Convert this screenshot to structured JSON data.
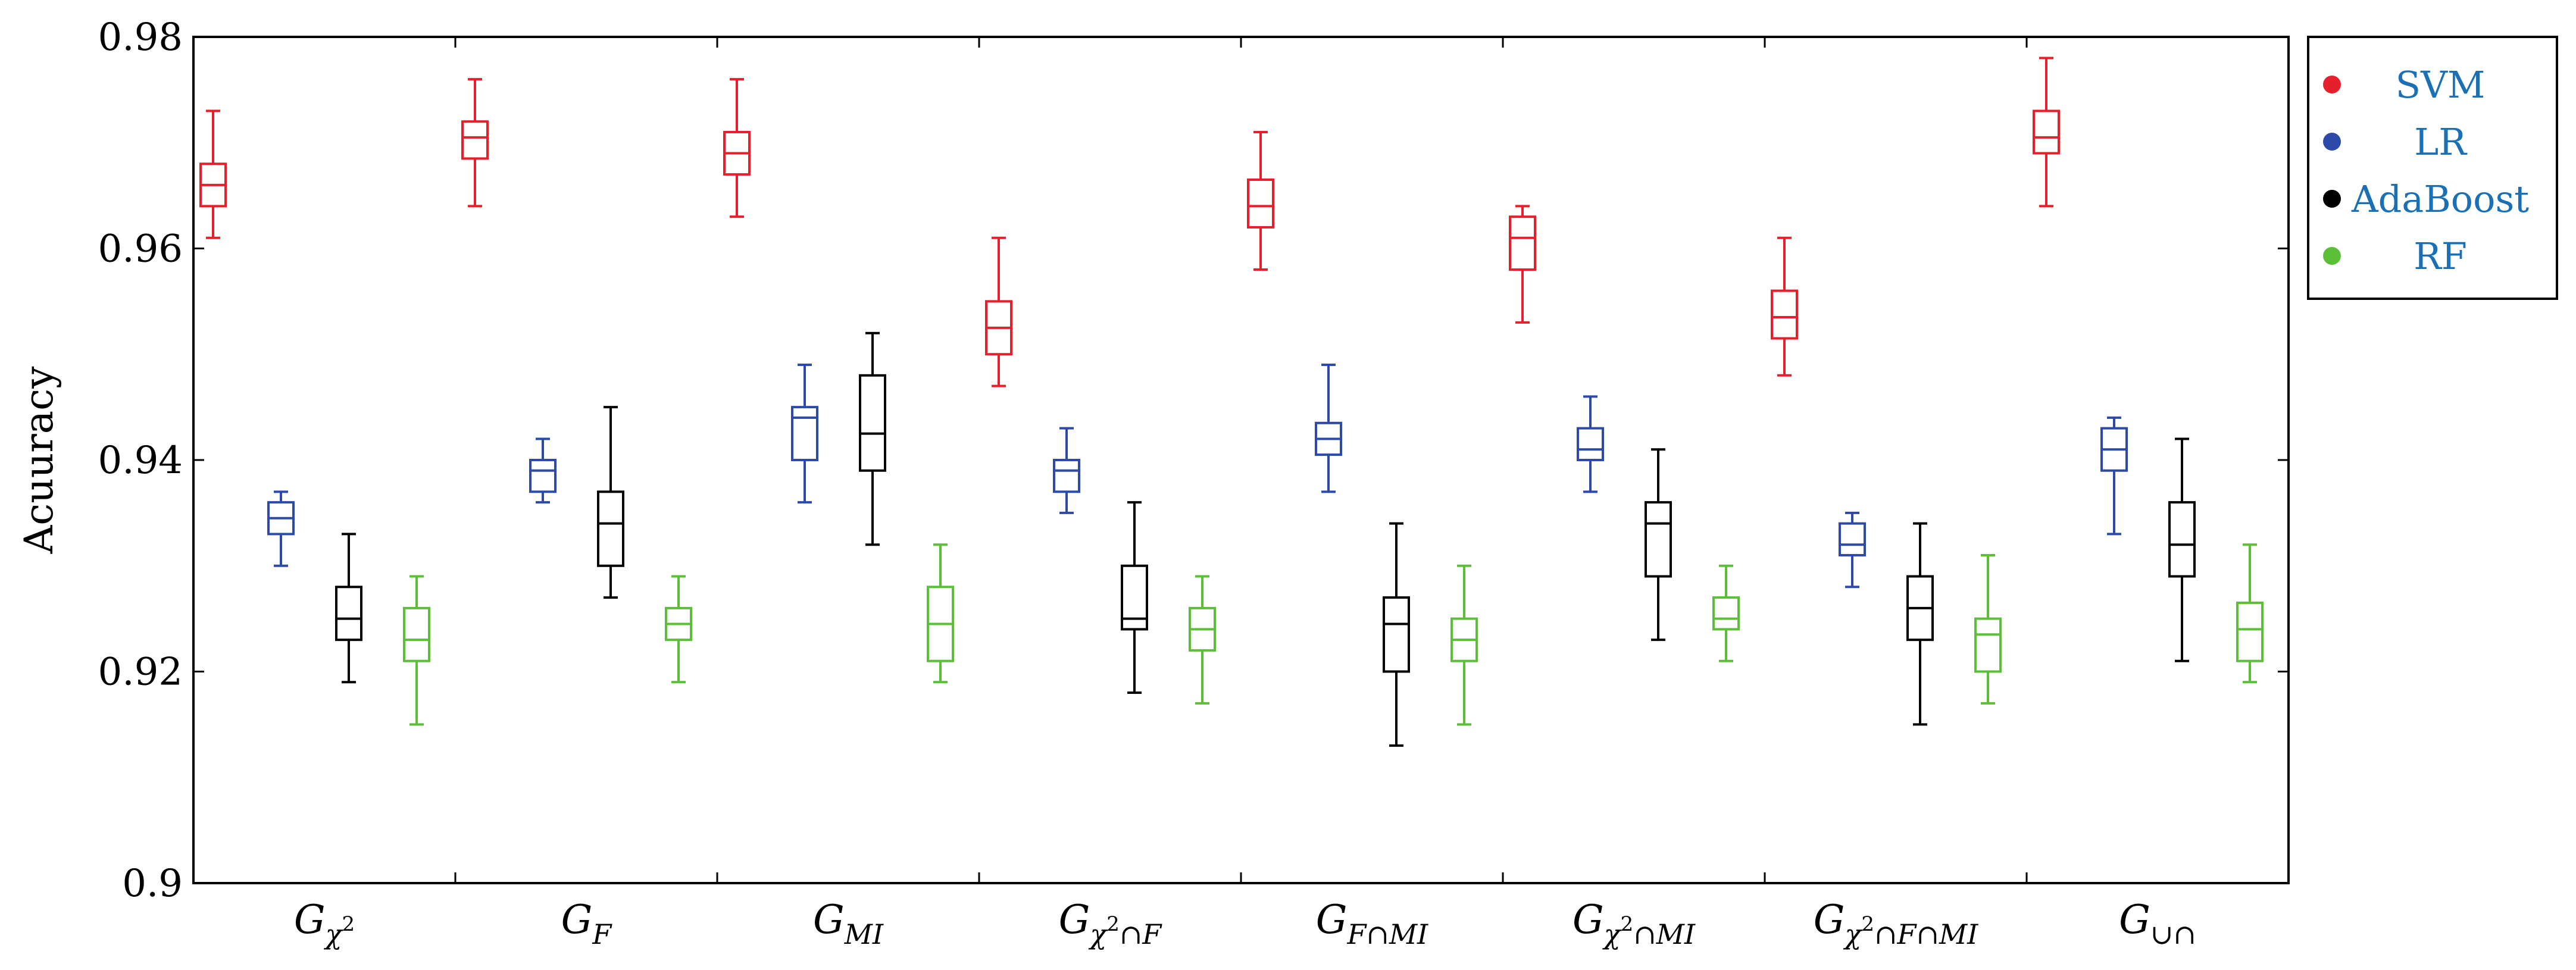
{
  "chart_data": {
    "type": "boxplot",
    "ylabel": "Acuuracy",
    "xlabel": "",
    "ylim": [
      0.9,
      0.98
    ],
    "yticks": [
      "0.9",
      "0.92",
      "0.94",
      "0.96",
      "0.98"
    ],
    "grid": false,
    "legend_position": "outside-top-right",
    "categories": [
      {
        "base": "G",
        "sub": "χ",
        "sup": "2",
        "rest": ""
      },
      {
        "base": "G",
        "sub": "F",
        "sup": "",
        "rest": ""
      },
      {
        "base": "G",
        "sub": "MI",
        "sup": "",
        "rest": ""
      },
      {
        "base": "G",
        "sub": "χ",
        "sup": "2",
        "rest": "∩F"
      },
      {
        "base": "G",
        "sub": "F∩MI",
        "sup": "",
        "rest": ""
      },
      {
        "base": "G",
        "sub": "χ",
        "sup": "2",
        "rest": "∩MI"
      },
      {
        "base": "G",
        "sub": "χ",
        "sup": "2",
        "rest": "∩F∩MI"
      },
      {
        "base": "G",
        "sub": "∪∩",
        "sup": "",
        "rest": ""
      }
    ],
    "series": [
      {
        "name": "SVM",
        "color": "#e5202b",
        "boxes": [
          {
            "min": 0.961,
            "q1": 0.964,
            "median": 0.966,
            "q3": 0.968,
            "max": 0.973
          },
          {
            "min": 0.964,
            "q1": 0.9685,
            "median": 0.9705,
            "q3": 0.972,
            "max": 0.976
          },
          {
            "min": 0.963,
            "q1": 0.967,
            "median": 0.969,
            "q3": 0.971,
            "max": 0.976
          },
          {
            "min": 0.947,
            "q1": 0.95,
            "median": 0.9525,
            "q3": 0.955,
            "max": 0.961
          },
          {
            "min": 0.958,
            "q1": 0.962,
            "median": 0.964,
            "q3": 0.9665,
            "max": 0.971
          },
          {
            "min": 0.953,
            "q1": 0.958,
            "median": 0.961,
            "q3": 0.963,
            "max": 0.964
          },
          {
            "min": 0.948,
            "q1": 0.9515,
            "median": 0.9535,
            "q3": 0.956,
            "max": 0.961
          },
          {
            "min": 0.964,
            "q1": 0.969,
            "median": 0.9705,
            "q3": 0.973,
            "max": 0.978
          }
        ]
      },
      {
        "name": "LR",
        "color": "#2e4aa8",
        "boxes": [
          {
            "min": 0.93,
            "q1": 0.933,
            "median": 0.9345,
            "q3": 0.936,
            "max": 0.937
          },
          {
            "min": 0.936,
            "q1": 0.937,
            "median": 0.939,
            "q3": 0.94,
            "max": 0.942
          },
          {
            "min": 0.936,
            "q1": 0.94,
            "median": 0.944,
            "q3": 0.945,
            "max": 0.949
          },
          {
            "min": 0.935,
            "q1": 0.937,
            "median": 0.939,
            "q3": 0.94,
            "max": 0.943
          },
          {
            "min": 0.937,
            "q1": 0.9405,
            "median": 0.942,
            "q3": 0.9435,
            "max": 0.949
          },
          {
            "min": 0.937,
            "q1": 0.94,
            "median": 0.941,
            "q3": 0.943,
            "max": 0.946
          },
          {
            "min": 0.928,
            "q1": 0.931,
            "median": 0.932,
            "q3": 0.934,
            "max": 0.935
          },
          {
            "min": 0.933,
            "q1": 0.939,
            "median": 0.941,
            "q3": 0.943,
            "max": 0.944
          }
        ]
      },
      {
        "name": "AdaBoost",
        "color": "#000000",
        "boxes": [
          {
            "min": 0.919,
            "q1": 0.923,
            "median": 0.925,
            "q3": 0.928,
            "max": 0.933
          },
          {
            "min": 0.927,
            "q1": 0.93,
            "median": 0.934,
            "q3": 0.937,
            "max": 0.945
          },
          {
            "min": 0.932,
            "q1": 0.939,
            "median": 0.9425,
            "q3": 0.948,
            "max": 0.952
          },
          {
            "min": 0.918,
            "q1": 0.924,
            "median": 0.925,
            "q3": 0.93,
            "max": 0.936
          },
          {
            "min": 0.913,
            "q1": 0.92,
            "median": 0.9245,
            "q3": 0.927,
            "max": 0.934
          },
          {
            "min": 0.923,
            "q1": 0.929,
            "median": 0.934,
            "q3": 0.936,
            "max": 0.941
          },
          {
            "min": 0.915,
            "q1": 0.923,
            "median": 0.926,
            "q3": 0.929,
            "max": 0.934
          },
          {
            "min": 0.921,
            "q1": 0.929,
            "median": 0.932,
            "q3": 0.936,
            "max": 0.942
          }
        ]
      },
      {
        "name": "RF",
        "color": "#5cbf3a",
        "boxes": [
          {
            "min": 0.915,
            "q1": 0.921,
            "median": 0.923,
            "q3": 0.926,
            "max": 0.929
          },
          {
            "min": 0.919,
            "q1": 0.923,
            "median": 0.9245,
            "q3": 0.926,
            "max": 0.929
          },
          {
            "min": 0.919,
            "q1": 0.921,
            "median": 0.9245,
            "q3": 0.928,
            "max": 0.932
          },
          {
            "min": 0.917,
            "q1": 0.922,
            "median": 0.924,
            "q3": 0.926,
            "max": 0.929
          },
          {
            "min": 0.915,
            "q1": 0.921,
            "median": 0.923,
            "q3": 0.925,
            "max": 0.93
          },
          {
            "min": 0.921,
            "q1": 0.924,
            "median": 0.925,
            "q3": 0.927,
            "max": 0.93
          },
          {
            "min": 0.917,
            "q1": 0.92,
            "median": 0.9235,
            "q3": 0.925,
            "max": 0.931
          },
          {
            "min": 0.919,
            "q1": 0.921,
            "median": 0.924,
            "q3": 0.9265,
            "max": 0.932
          }
        ]
      }
    ],
    "legend_text_color": "#1a6fb5"
  }
}
